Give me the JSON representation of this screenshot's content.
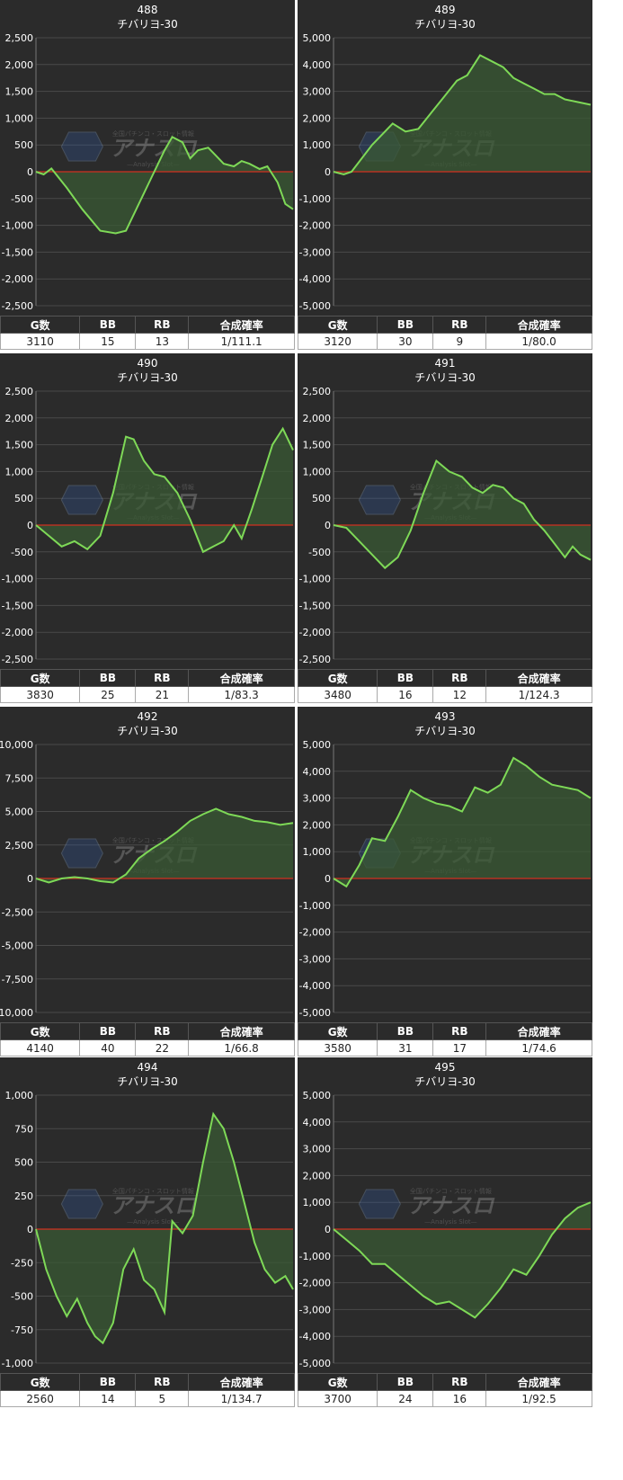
{
  "headers": {
    "games": "G数",
    "bb": "BB",
    "rb": "RB",
    "rate": "合成確率"
  },
  "watermark": {
    "badge": "全国パチンコ・スロット情報",
    "logo": "アナスロ",
    "sub": "—Analysis Slot—"
  },
  "colors": {
    "panel_bg": "#2b2b2b",
    "line": "#7ed957",
    "fill": "#3a5a34",
    "zero_line": "#d03020",
    "grid": "#4a4a4a"
  },
  "chart_data": [
    {
      "type": "area",
      "title": "488",
      "subtitle": "チバリヨ-30",
      "ylim": [
        -2500,
        2500
      ],
      "yticks": [
        "2,500",
        "2,000",
        "1,500",
        "1,000",
        "500",
        "0",
        "-500",
        "-1,000",
        "-1,500",
        "-2,000",
        "-2,500"
      ],
      "x": [
        0,
        0.03,
        0.06,
        0.12,
        0.18,
        0.25,
        0.31,
        0.35,
        0.4,
        0.45,
        0.5,
        0.53,
        0.57,
        0.6,
        0.63,
        0.67,
        0.7,
        0.73,
        0.77,
        0.8,
        0.83,
        0.87,
        0.9,
        0.94,
        0.97,
        1
      ],
      "y": [
        0,
        -50,
        60,
        -300,
        -700,
        -1100,
        -1150,
        -1100,
        -600,
        -100,
        400,
        650,
        550,
        250,
        400,
        450,
        300,
        150,
        100,
        200,
        150,
        50,
        100,
        -200,
        -600,
        -700
      ],
      "stats": {
        "games": "3110",
        "bb": "15",
        "rb": "13",
        "rate": "1/111.1"
      }
    },
    {
      "type": "area",
      "title": "489",
      "subtitle": "チバリヨ-30",
      "ylim": [
        -5000,
        5000
      ],
      "yticks": [
        "5,000",
        "4,000",
        "3,000",
        "2,000",
        "1,000",
        "0",
        "-1,000",
        "-2,000",
        "-3,000",
        "-4,000",
        "-5,000"
      ],
      "x": [
        0,
        0.04,
        0.07,
        0.15,
        0.23,
        0.28,
        0.33,
        0.38,
        0.43,
        0.48,
        0.52,
        0.57,
        0.62,
        0.66,
        0.7,
        0.74,
        0.78,
        0.82,
        0.86,
        0.9,
        0.95,
        1
      ],
      "y": [
        0,
        -100,
        0,
        1000,
        1800,
        1500,
        1600,
        2200,
        2800,
        3400,
        3600,
        4350,
        4100,
        3900,
        3500,
        3300,
        3100,
        2900,
        2900,
        2700,
        2600,
        2500
      ],
      "stats": {
        "games": "3120",
        "bb": "30",
        "rb": "9",
        "rate": "1/80.0"
      }
    },
    {
      "type": "area",
      "title": "490",
      "subtitle": "チバリヨ-30",
      "ylim": [
        -2500,
        2500
      ],
      "yticks": [
        "2,500",
        "2,000",
        "1,500",
        "1,000",
        "500",
        "0",
        "-500",
        "-1,000",
        "-1,500",
        "-2,000",
        "-2,500"
      ],
      "x": [
        0,
        0.05,
        0.1,
        0.15,
        0.2,
        0.25,
        0.3,
        0.35,
        0.38,
        0.42,
        0.46,
        0.5,
        0.55,
        0.6,
        0.65,
        0.69,
        0.73,
        0.77,
        0.8,
        0.84,
        0.88,
        0.92,
        0.96,
        1
      ],
      "y": [
        0,
        -200,
        -400,
        -300,
        -450,
        -200,
        600,
        1650,
        1600,
        1200,
        950,
        900,
        600,
        100,
        -500,
        -400,
        -300,
        0,
        -250,
        300,
        900,
        1500,
        1800,
        1400
      ],
      "stats": {
        "games": "3830",
        "bb": "25",
        "rb": "21",
        "rate": "1/83.3"
      }
    },
    {
      "type": "area",
      "title": "491",
      "subtitle": "チバリヨ-30",
      "ylim": [
        -2500,
        2500
      ],
      "yticks": [
        "2,500",
        "2,000",
        "1,500",
        "1,000",
        "500",
        "0",
        "-500",
        "-1,000",
        "-1,500",
        "-2,000",
        "-2,500"
      ],
      "x": [
        0,
        0.05,
        0.1,
        0.15,
        0.2,
        0.25,
        0.3,
        0.35,
        0.4,
        0.45,
        0.5,
        0.54,
        0.58,
        0.62,
        0.66,
        0.7,
        0.74,
        0.78,
        0.82,
        0.86,
        0.9,
        0.93,
        0.96,
        1
      ],
      "y": [
        0,
        -50,
        -300,
        -550,
        -800,
        -600,
        -100,
        600,
        1200,
        1000,
        900,
        700,
        600,
        750,
        700,
        500,
        400,
        100,
        -100,
        -350,
        -600,
        -400,
        -550,
        -650
      ],
      "stats": {
        "games": "3480",
        "bb": "16",
        "rb": "12",
        "rate": "1/124.3"
      }
    },
    {
      "type": "area",
      "title": "492",
      "subtitle": "チバリヨ-30",
      "ylim": [
        -10000,
        10000
      ],
      "yticks": [
        "10,000",
        "7,500",
        "5,000",
        "2,500",
        "0",
        "-2,500",
        "-5,000",
        "-7,500",
        "-10,000"
      ],
      "x": [
        0,
        0.05,
        0.1,
        0.15,
        0.2,
        0.25,
        0.3,
        0.35,
        0.4,
        0.45,
        0.5,
        0.55,
        0.6,
        0.65,
        0.7,
        0.75,
        0.8,
        0.85,
        0.9,
        0.95,
        1
      ],
      "y": [
        0,
        -300,
        0,
        100,
        0,
        -200,
        -300,
        300,
        1500,
        2200,
        2800,
        3500,
        4300,
        4800,
        5200,
        4800,
        4600,
        4300,
        4200,
        4000,
        4150
      ],
      "stats": {
        "games": "4140",
        "bb": "40",
        "rb": "22",
        "rate": "1/66.8"
      }
    },
    {
      "type": "area",
      "title": "493",
      "subtitle": "チバリヨ-30",
      "ylim": [
        -5000,
        5000
      ],
      "yticks": [
        "5,000",
        "4,000",
        "3,000",
        "2,000",
        "1,000",
        "0",
        "-1,000",
        "-2,000",
        "-3,000",
        "-4,000",
        "-5,000"
      ],
      "x": [
        0,
        0.05,
        0.1,
        0.15,
        0.2,
        0.25,
        0.3,
        0.35,
        0.4,
        0.45,
        0.5,
        0.55,
        0.6,
        0.65,
        0.7,
        0.75,
        0.8,
        0.85,
        0.9,
        0.95,
        1
      ],
      "y": [
        0,
        -300,
        500,
        1500,
        1400,
        2300,
        3300,
        3000,
        2800,
        2700,
        2500,
        3400,
        3200,
        3500,
        4500,
        4200,
        3800,
        3500,
        3400,
        3300,
        3000
      ],
      "stats": {
        "games": "3580",
        "bb": "31",
        "rb": "17",
        "rate": "1/74.6"
      }
    },
    {
      "type": "area",
      "title": "494",
      "subtitle": "チバリヨ-30",
      "ylim": [
        -1000,
        1000
      ],
      "yticks": [
        "1,000",
        "750",
        "500",
        "250",
        "0",
        "-250",
        "-500",
        "-750",
        "-1,000"
      ],
      "x": [
        0,
        0.04,
        0.08,
        0.12,
        0.16,
        0.2,
        0.23,
        0.26,
        0.3,
        0.34,
        0.38,
        0.42,
        0.46,
        0.5,
        0.53,
        0.57,
        0.61,
        0.65,
        0.69,
        0.73,
        0.77,
        0.81,
        0.85,
        0.89,
        0.93,
        0.97,
        1
      ],
      "y": [
        0,
        -300,
        -500,
        -650,
        -520,
        -700,
        -800,
        -850,
        -700,
        -300,
        -150,
        -380,
        -450,
        -620,
        60,
        -30,
        100,
        500,
        860,
        750,
        500,
        200,
        -100,
        -300,
        -400,
        -350,
        -450
      ],
      "stats": {
        "games": "2560",
        "bb": "14",
        "rb": "5",
        "rate": "1/134.7"
      }
    },
    {
      "type": "area",
      "title": "495",
      "subtitle": "チバリヨ-30",
      "ylim": [
        -5000,
        5000
      ],
      "yticks": [
        "5,000",
        "4,000",
        "3,000",
        "2,000",
        "1,000",
        "0",
        "-1,000",
        "-2,000",
        "-3,000",
        "-4,000",
        "-5,000"
      ],
      "x": [
        0,
        0.05,
        0.1,
        0.15,
        0.2,
        0.25,
        0.3,
        0.35,
        0.4,
        0.45,
        0.5,
        0.55,
        0.6,
        0.65,
        0.7,
        0.75,
        0.8,
        0.85,
        0.9,
        0.95,
        1
      ],
      "y": [
        0,
        -400,
        -800,
        -1300,
        -1300,
        -1700,
        -2100,
        -2500,
        -2800,
        -2700,
        -3000,
        -3300,
        -2800,
        -2200,
        -1500,
        -1700,
        -1000,
        -200,
        400,
        800,
        1000
      ],
      "stats": {
        "games": "3700",
        "bb": "24",
        "rb": "16",
        "rate": "1/92.5"
      }
    }
  ]
}
